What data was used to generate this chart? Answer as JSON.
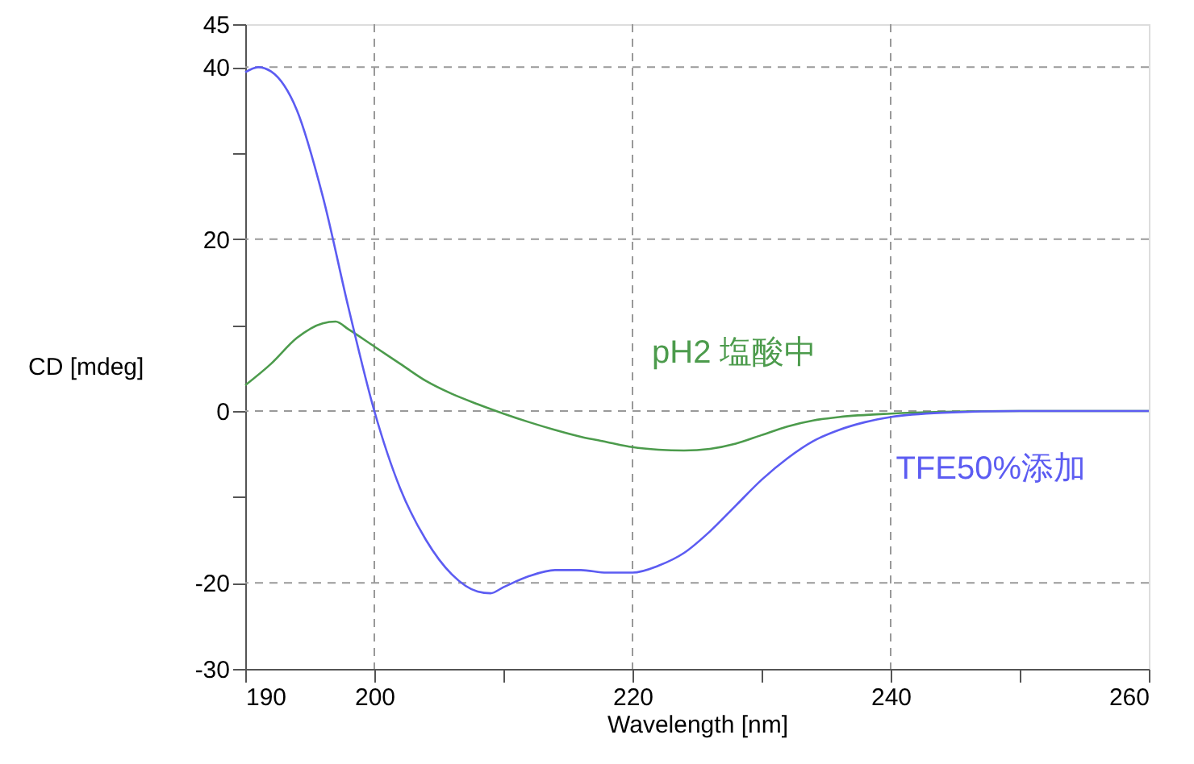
{
  "chart_data": {
    "type": "line",
    "xlabel": "Wavelength [nm]",
    "ylabel": "CD [mdeg]",
    "xlim": [
      190,
      260
    ],
    "ylim": [
      -30,
      45
    ],
    "xticks": [
      190,
      200,
      {
        "value": 210,
        "label": null
      },
      220,
      {
        "value": 230,
        "label": null
      },
      240,
      {
        "value": 250,
        "label": null
      },
      260
    ],
    "yticks": [
      -30,
      -20,
      {
        "value": -10,
        "label": null
      },
      0,
      {
        "value": 10,
        "label": null
      },
      20,
      {
        "value": 30,
        "label": null
      },
      40,
      45
    ],
    "grid": true,
    "line_style": "solid",
    "marker": "none",
    "series": [
      {
        "name": "pH2 塩酸中",
        "color": "#4c9b4c",
        "x": [
          190,
          192,
          194,
          196,
          197,
          198,
          200,
          202,
          204,
          206,
          208,
          210,
          212,
          214,
          216,
          218,
          220,
          222,
          224,
          226,
          228,
          230,
          232,
          234,
          236,
          240,
          244,
          250,
          260
        ],
        "values": [
          3,
          5.5,
          8.5,
          10.2,
          10.4,
          9.5,
          7.5,
          5.5,
          3.5,
          2,
          0.8,
          -0.3,
          -1.3,
          -2.2,
          -3,
          -3.6,
          -4.2,
          -4.5,
          -4.6,
          -4.4,
          -3.8,
          -2.8,
          -1.8,
          -1.1,
          -0.7,
          -0.3,
          -0.1,
          0,
          0
        ]
      },
      {
        "name": "TFE50%添加",
        "color": "#5c5cf2",
        "x": [
          190,
          191,
          192,
          194,
          196,
          198,
          200,
          202,
          204,
          206,
          208,
          209,
          210,
          212,
          214,
          216,
          218,
          220,
          222,
          224,
          226,
          228,
          230,
          232,
          234,
          236,
          238,
          240,
          244,
          250,
          260
        ],
        "values": [
          39.4,
          40,
          39.5,
          35,
          25,
          12,
          0,
          -9,
          -15,
          -19,
          -21,
          -21.2,
          -20.5,
          -19.2,
          -18.5,
          -18.5,
          -18.8,
          -18.8,
          -18,
          -16.5,
          -14,
          -11,
          -8,
          -5.5,
          -3.5,
          -2.2,
          -1.3,
          -0.7,
          -0.2,
          0,
          0
        ]
      }
    ]
  }
}
